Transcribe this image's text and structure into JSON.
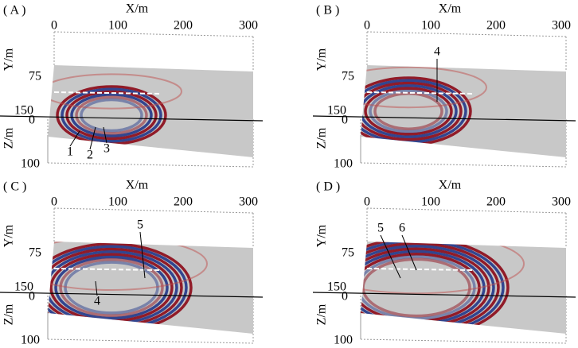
{
  "panels": [
    {
      "label": "( A )",
      "x_axis_label": "X/m",
      "y_axis_label": "Y/m",
      "z_axis_label": "Z/m",
      "x_ticks": [
        "0",
        "100",
        "200",
        "300"
      ],
      "y_ticks": [
        "75",
        "150"
      ],
      "z_ticks": [
        "0",
        "100"
      ],
      "annotations": [
        "1",
        "2",
        "3"
      ]
    },
    {
      "label": "( B )",
      "x_axis_label": "X/m",
      "y_axis_label": "Y/m",
      "z_axis_label": "Z/m",
      "x_ticks": [
        "0",
        "100",
        "200",
        "300"
      ],
      "y_ticks": [
        "75",
        "150"
      ],
      "z_ticks": [
        "0",
        "100"
      ],
      "annotations": [
        "4"
      ]
    },
    {
      "label": "( C )",
      "x_axis_label": "X/m",
      "y_axis_label": "Y/m",
      "z_axis_label": "Z/m",
      "x_ticks": [
        "0",
        "100",
        "200",
        "300"
      ],
      "y_ticks": [
        "75",
        "150"
      ],
      "z_ticks": [
        "0",
        "100"
      ],
      "annotations": [
        "5",
        "4"
      ]
    },
    {
      "label": "( D )",
      "x_axis_label": "X/m",
      "y_axis_label": "Y/m",
      "z_axis_label": "Z/m",
      "x_ticks": [
        "0",
        "100",
        "200",
        "300"
      ],
      "y_ticks": [
        "75",
        "150"
      ],
      "z_ticks": [
        "0",
        "100"
      ],
      "annotations": [
        "5",
        "6"
      ]
    }
  ]
}
